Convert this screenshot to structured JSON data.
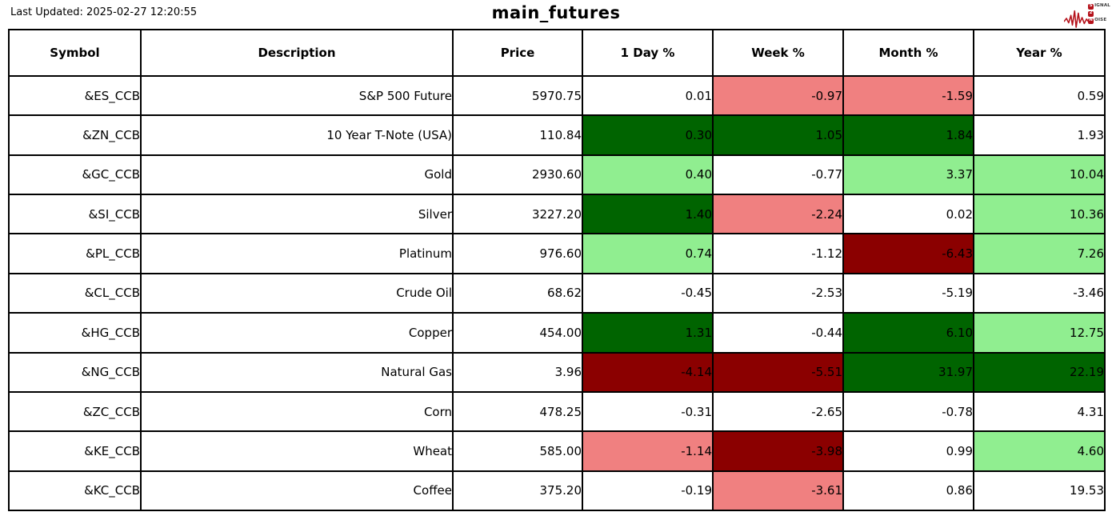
{
  "meta": {
    "last_updated": "Last Updated: 2025-02-27 12:20:55"
  },
  "logo": {
    "accent": "#b5121b",
    "line1_initial": "S",
    "line1_rest": "IGNAL",
    "line2_initial": "2",
    "line2_rest": "",
    "line3_initial": "N",
    "line3_rest": "OISE"
  },
  "colors": {
    "strong_up": "#006400",
    "up": "#90EE90",
    "down": "#F08080",
    "strong_down": "#8B0000",
    "neutral": "#FFFFFF"
  },
  "chart_data": {
    "type": "table",
    "title": "main_futures",
    "columns": [
      "Symbol",
      "Description",
      "Price",
      "1 Day %",
      "Week %",
      "Month %",
      "Year %"
    ],
    "rows": [
      {
        "symbol": "&ES_CCB",
        "description": "S&P 500 Future",
        "price": "5970.75",
        "changes": [
          {
            "value": "0.01",
            "color": "neutral"
          },
          {
            "value": "-0.97",
            "color": "down"
          },
          {
            "value": "-1.59",
            "color": "down"
          },
          {
            "value": "0.59",
            "color": "neutral"
          }
        ]
      },
      {
        "symbol": "&ZN_CCB",
        "description": "10 Year T-Note (USA)",
        "price": "110.84",
        "changes": [
          {
            "value": "0.30",
            "color": "strong_up"
          },
          {
            "value": "1.05",
            "color": "strong_up"
          },
          {
            "value": "1.84",
            "color": "strong_up"
          },
          {
            "value": "1.93",
            "color": "neutral"
          }
        ]
      },
      {
        "symbol": "&GC_CCB",
        "description": "Gold",
        "price": "2930.60",
        "changes": [
          {
            "value": "0.40",
            "color": "up"
          },
          {
            "value": "-0.77",
            "color": "neutral"
          },
          {
            "value": "3.37",
            "color": "up"
          },
          {
            "value": "10.04",
            "color": "up"
          }
        ]
      },
      {
        "symbol": "&SI_CCB",
        "description": "Silver",
        "price": "3227.20",
        "changes": [
          {
            "value": "1.40",
            "color": "strong_up"
          },
          {
            "value": "-2.24",
            "color": "down"
          },
          {
            "value": "0.02",
            "color": "neutral"
          },
          {
            "value": "10.36",
            "color": "up"
          }
        ]
      },
      {
        "symbol": "&PL_CCB",
        "description": "Platinum",
        "price": "976.60",
        "changes": [
          {
            "value": "0.74",
            "color": "up"
          },
          {
            "value": "-1.12",
            "color": "neutral"
          },
          {
            "value": "-6.43",
            "color": "strong_down"
          },
          {
            "value": "7.26",
            "color": "up"
          }
        ]
      },
      {
        "symbol": "&CL_CCB",
        "description": "Crude Oil",
        "price": "68.62",
        "changes": [
          {
            "value": "-0.45",
            "color": "neutral"
          },
          {
            "value": "-2.53",
            "color": "neutral"
          },
          {
            "value": "-5.19",
            "color": "neutral"
          },
          {
            "value": "-3.46",
            "color": "neutral"
          }
        ]
      },
      {
        "symbol": "&HG_CCB",
        "description": "Copper",
        "price": "454.00",
        "changes": [
          {
            "value": "1.31",
            "color": "strong_up"
          },
          {
            "value": "-0.44",
            "color": "neutral"
          },
          {
            "value": "6.10",
            "color": "strong_up"
          },
          {
            "value": "12.75",
            "color": "up"
          }
        ]
      },
      {
        "symbol": "&NG_CCB",
        "description": "Natural Gas",
        "price": "3.96",
        "changes": [
          {
            "value": "-4.14",
            "color": "strong_down"
          },
          {
            "value": "-5.51",
            "color": "strong_down"
          },
          {
            "value": "31.97",
            "color": "strong_up"
          },
          {
            "value": "22.19",
            "color": "strong_up"
          }
        ]
      },
      {
        "symbol": "&ZC_CCB",
        "description": "Corn",
        "price": "478.25",
        "changes": [
          {
            "value": "-0.31",
            "color": "neutral"
          },
          {
            "value": "-2.65",
            "color": "neutral"
          },
          {
            "value": "-0.78",
            "color": "neutral"
          },
          {
            "value": "4.31",
            "color": "neutral"
          }
        ]
      },
      {
        "symbol": "&KE_CCB",
        "description": "Wheat",
        "price": "585.00",
        "changes": [
          {
            "value": "-1.14",
            "color": "down"
          },
          {
            "value": "-3.98",
            "color": "strong_down"
          },
          {
            "value": "0.99",
            "color": "neutral"
          },
          {
            "value": "4.60",
            "color": "up"
          }
        ]
      },
      {
        "symbol": "&KC_CCB",
        "description": "Coffee",
        "price": "375.20",
        "changes": [
          {
            "value": "-0.19",
            "color": "neutral"
          },
          {
            "value": "-3.61",
            "color": "down"
          },
          {
            "value": "0.86",
            "color": "neutral"
          },
          {
            "value": "19.53",
            "color": "neutral"
          }
        ]
      }
    ]
  }
}
